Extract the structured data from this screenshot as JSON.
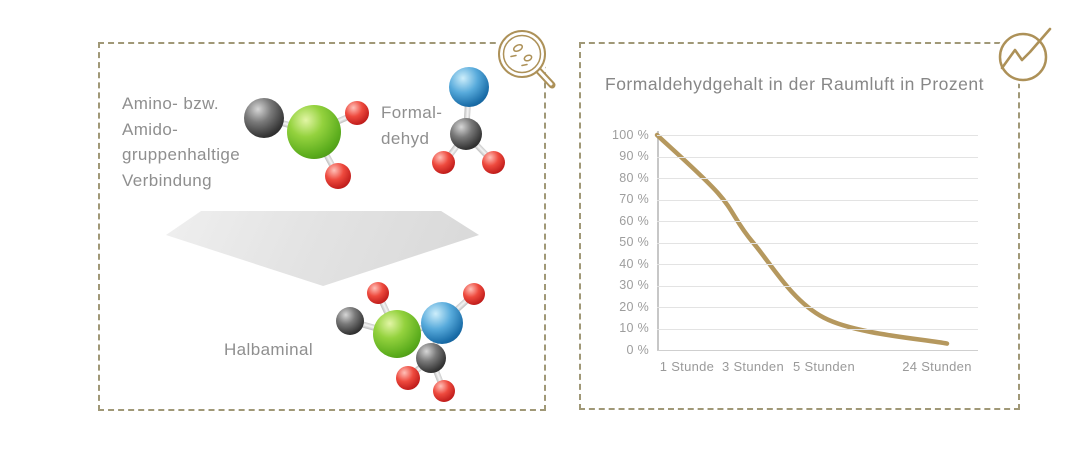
{
  "colors": {
    "panel_border": "#a09877",
    "gold_icon": "#ad9158",
    "chart_line": "#b5985e",
    "text_gray": "#8f8f8f",
    "tick_gray": "#9d9d9d",
    "gridline": "#e3e3e3",
    "arrow_gray": "#e3e3e3",
    "sphere_green": "#6cb82a",
    "sphere_blue": "#2a7cb5",
    "sphere_black": "#333333",
    "sphere_red": "#c9201d"
  },
  "left_panel": {
    "icon": "magnifier-particles-icon",
    "reactant_lines": [
      "Amino- bzw.",
      "Amido-",
      "gruppenhaltige",
      "Verbindung"
    ],
    "formaldehyde_lines": [
      "Formal-",
      "dehyd"
    ],
    "product_label": "Halbaminal",
    "arrow": "down-arrow"
  },
  "right_panel": {
    "icon": "trend-line-icon"
  },
  "chart_data": {
    "type": "line",
    "title": "Formaldehydgehalt in der Raumluft in Prozent",
    "categories": [
      "1 Stunde",
      "3 Stunden",
      "5 Stunden",
      "24 Stunden"
    ],
    "values": [
      73,
      50,
      15,
      3
    ],
    "start_value": 100,
    "xlabel": "",
    "ylabel": "",
    "y_ticks": [
      "100 %",
      "90 %",
      "80 %",
      "70 %",
      "60 %",
      "50 %",
      "40 %",
      "30 %",
      "20 %",
      "10 %",
      "0 %"
    ],
    "ylim": [
      0,
      100
    ],
    "grid": "horizontal",
    "legend": "none",
    "line_color": "#b5985e"
  }
}
